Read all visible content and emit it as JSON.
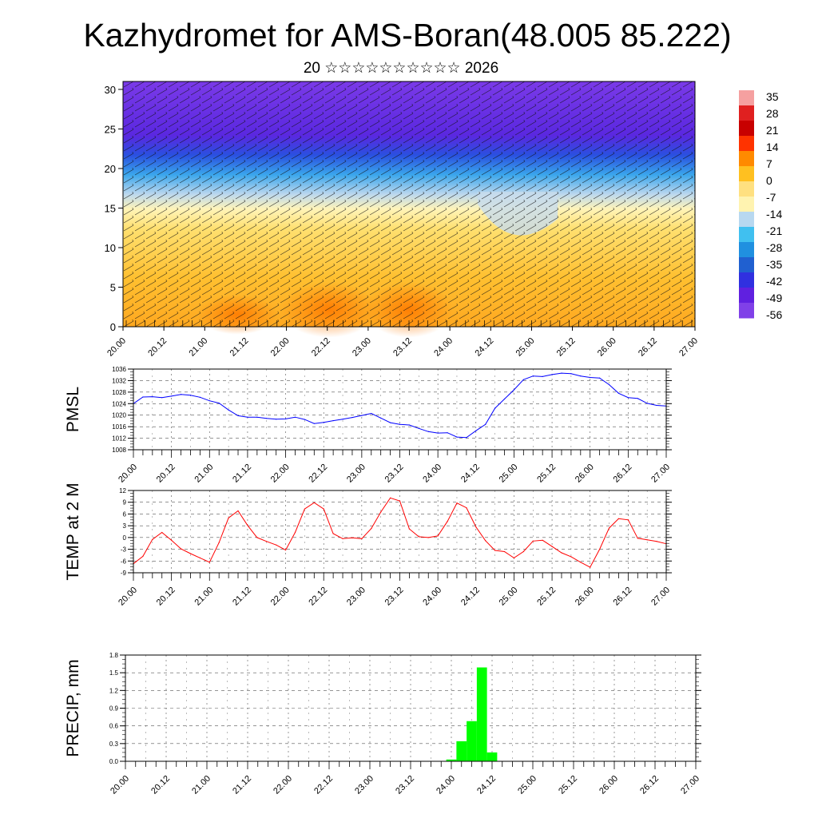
{
  "page": {
    "title": "Kazhydromet for AMS-Boran(48.005 85.222)",
    "subtitle": "20 ☆☆☆☆☆☆☆☆☆☆ 2026"
  },
  "chart_data": [
    {
      "id": "cross-section",
      "type": "heatmap",
      "description_units": "temperature cross-section with wind barbs",
      "y_ticks": [
        "0",
        "5",
        "10",
        "15",
        "20",
        "25",
        "30"
      ],
      "ylim": [
        0,
        31
      ],
      "x_ticks": [
        "20.00",
        "20.12",
        "21.00",
        "21.12",
        "22.00",
        "22.12",
        "23.00",
        "23.12",
        "24.00",
        "24.12",
        "25.00",
        "25.12",
        "26.00",
        "26.12",
        "27.00"
      ],
      "colorbar": {
        "labels": [
          "35",
          "28",
          "21",
          "14",
          "7",
          "0",
          "-7",
          "-14",
          "-21",
          "-28",
          "-35",
          "-42",
          "-49",
          "-56"
        ],
        "colors": [
          "#f5a0a0",
          "#e02020",
          "#c80000",
          "#ff3300",
          "#ff8a00",
          "#ffc020",
          "#ffe080",
          "#fff3b0",
          "#b8d8f0",
          "#40c0f0",
          "#2090e0",
          "#2060d0",
          "#3030e0",
          "#6020e0",
          "#8040e8"
        ]
      }
    },
    {
      "id": "pmsl",
      "type": "line",
      "ylabel": "PMSL",
      "color": "#0000ff",
      "ylim": [
        1008,
        1036
      ],
      "y_ticks": [
        "1008",
        "1012",
        "1016",
        "1020",
        "1024",
        "1028",
        "1032",
        "1036"
      ],
      "x_ticks": [
        "20.00",
        "20.12",
        "21.00",
        "21.12",
        "22.00",
        "22.12",
        "23.00",
        "23.12",
        "24.00",
        "24.12",
        "25.00",
        "25.12",
        "26.00",
        "26.12",
        "27.00"
      ],
      "x": [
        0,
        3,
        6,
        9,
        12,
        15,
        18,
        21,
        24,
        27,
        30,
        33,
        36,
        39,
        42,
        45,
        48,
        51,
        54,
        57,
        60,
        63,
        66,
        69,
        72,
        75,
        78,
        81,
        84,
        87,
        90,
        93,
        96,
        99,
        102,
        105,
        108,
        111,
        114,
        117,
        120,
        123,
        126,
        129,
        132,
        135,
        138,
        141,
        144,
        147,
        150,
        153,
        156,
        159,
        162,
        165,
        168
      ],
      "values": [
        1024,
        1026.3,
        1026.4,
        1026.1,
        1026.6,
        1027.2,
        1026.9,
        1026.2,
        1025.0,
        1024.2,
        1021.8,
        1019.8,
        1019.3,
        1019.3,
        1018.9,
        1018.6,
        1018.7,
        1019.3,
        1018.5,
        1017.1,
        1017.5,
        1018.1,
        1018.6,
        1019.2,
        1019.9,
        1020.6,
        1019.0,
        1017.4,
        1016.8,
        1016.6,
        1015.4,
        1014.3,
        1013.8,
        1013.9,
        1012.4,
        1012.2,
        1014.6,
        1016.8,
        1022.4,
        1025.6,
        1028.8,
        1032.3,
        1033.6,
        1033.4,
        1034.1,
        1034.6,
        1034.4,
        1033.6,
        1033.1,
        1032.9,
        1030.6,
        1027.6,
        1026.1,
        1025.8,
        1024.1,
        1023.4,
        1023.2
      ]
    },
    {
      "id": "temp2m",
      "type": "line",
      "ylabel": "TEMP at 2 M",
      "color": "#ff0000",
      "ylim": [
        -9,
        12
      ],
      "y_ticks": [
        "-9",
        "-6",
        "-3",
        "0",
        "3",
        "6",
        "9",
        "12"
      ],
      "x_ticks": [
        "20.00",
        "20.12",
        "21.00",
        "21.12",
        "22.00",
        "22.12",
        "23.00",
        "23.12",
        "24.00",
        "24.12",
        "25.00",
        "25.12",
        "26.00",
        "26.12",
        "27.00"
      ],
      "x": [
        0,
        3,
        6,
        9,
        12,
        15,
        18,
        21,
        24,
        27,
        30,
        33,
        36,
        39,
        42,
        45,
        48,
        51,
        54,
        57,
        60,
        63,
        66,
        69,
        72,
        75,
        78,
        81,
        84,
        87,
        90,
        93,
        96,
        99,
        102,
        105,
        108,
        111,
        114,
        117,
        120,
        123,
        126,
        129,
        132,
        135,
        138,
        141,
        144,
        147,
        150,
        153,
        156,
        159,
        162,
        165,
        168
      ],
      "values": [
        -6.7,
        -4.8,
        -0.5,
        1.3,
        -0.7,
        -2.9,
        -4.1,
        -5.2,
        -6.3,
        -1.3,
        5.0,
        6.8,
        3.1,
        0.0,
        -1.0,
        -1.9,
        -3.2,
        1.3,
        7.3,
        8.9,
        7.3,
        1.0,
        -0.3,
        -0.1,
        -0.3,
        2.3,
        6.5,
        10.1,
        9.3,
        2.2,
        0.2,
        0.0,
        0.4,
        4.1,
        8.8,
        7.6,
        2.7,
        -0.8,
        -3.3,
        -3.6,
        -5.2,
        -3.6,
        -0.9,
        -0.7,
        -2.3,
        -3.9,
        -4.9,
        -6.3,
        -7.6,
        -3.0,
        2.4,
        4.8,
        4.5,
        -0.2,
        -0.6,
        -1.0,
        -1.6
      ]
    },
    {
      "id": "precip",
      "type": "bar",
      "ylabel": "PRECIP, mm",
      "color": "#00ff00",
      "ylim": [
        0,
        1.8
      ],
      "y_ticks": [
        "0.0",
        "0.3",
        "0.6",
        "0.9",
        "1.2",
        "1.5",
        "1.8"
      ],
      "x_ticks": [
        "20.00",
        "20.12",
        "21.00",
        "21.12",
        "22.00",
        "22.12",
        "23.00",
        "23.12",
        "24.00",
        "24.12",
        "25.00",
        "25.12",
        "26.00",
        "26.12",
        "27.00"
      ],
      "bar_width_hours": 3,
      "x": [
        96,
        99,
        102,
        105,
        108
      ],
      "values": [
        0.03,
        0.34,
        0.68,
        1.59,
        0.15
      ]
    }
  ]
}
